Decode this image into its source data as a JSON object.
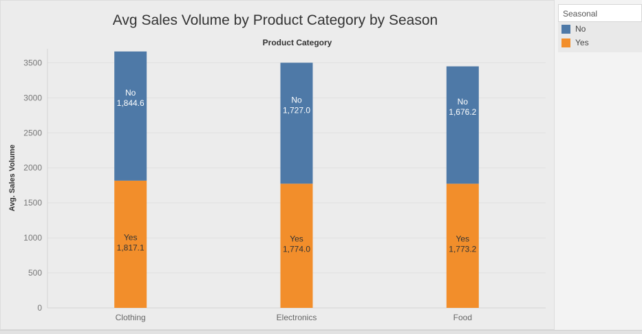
{
  "chart_data": {
    "type": "bar",
    "stacked": true,
    "title": "Avg Sales Volume by Product Category by Season",
    "header_label": "Product Category",
    "xlabel": "",
    "ylabel": "Avg. Sales Volume",
    "categories": [
      "Clothing",
      "Electronics",
      "Food"
    ],
    "series": [
      {
        "name": "Yes",
        "values": [
          1817.1,
          1774.0,
          1773.2
        ],
        "labels": [
          "1,817.1",
          "1,774.0",
          "1,773.2"
        ],
        "color": "#f28e2b"
      },
      {
        "name": "No",
        "values": [
          1844.6,
          1727.0,
          1676.2
        ],
        "labels": [
          "1,844.6",
          "1,727.0",
          "1,676.2"
        ],
        "color": "#4e79a7"
      }
    ],
    "ylim": [
      0,
      3700
    ],
    "yticks": [
      0,
      500,
      1000,
      1500,
      2000,
      2500,
      3000,
      3500
    ],
    "grid": true
  },
  "legend": {
    "title": "Seasonal",
    "items": [
      {
        "label": "No",
        "color": "#4e79a7"
      },
      {
        "label": "Yes",
        "color": "#f28e2b"
      }
    ]
  }
}
